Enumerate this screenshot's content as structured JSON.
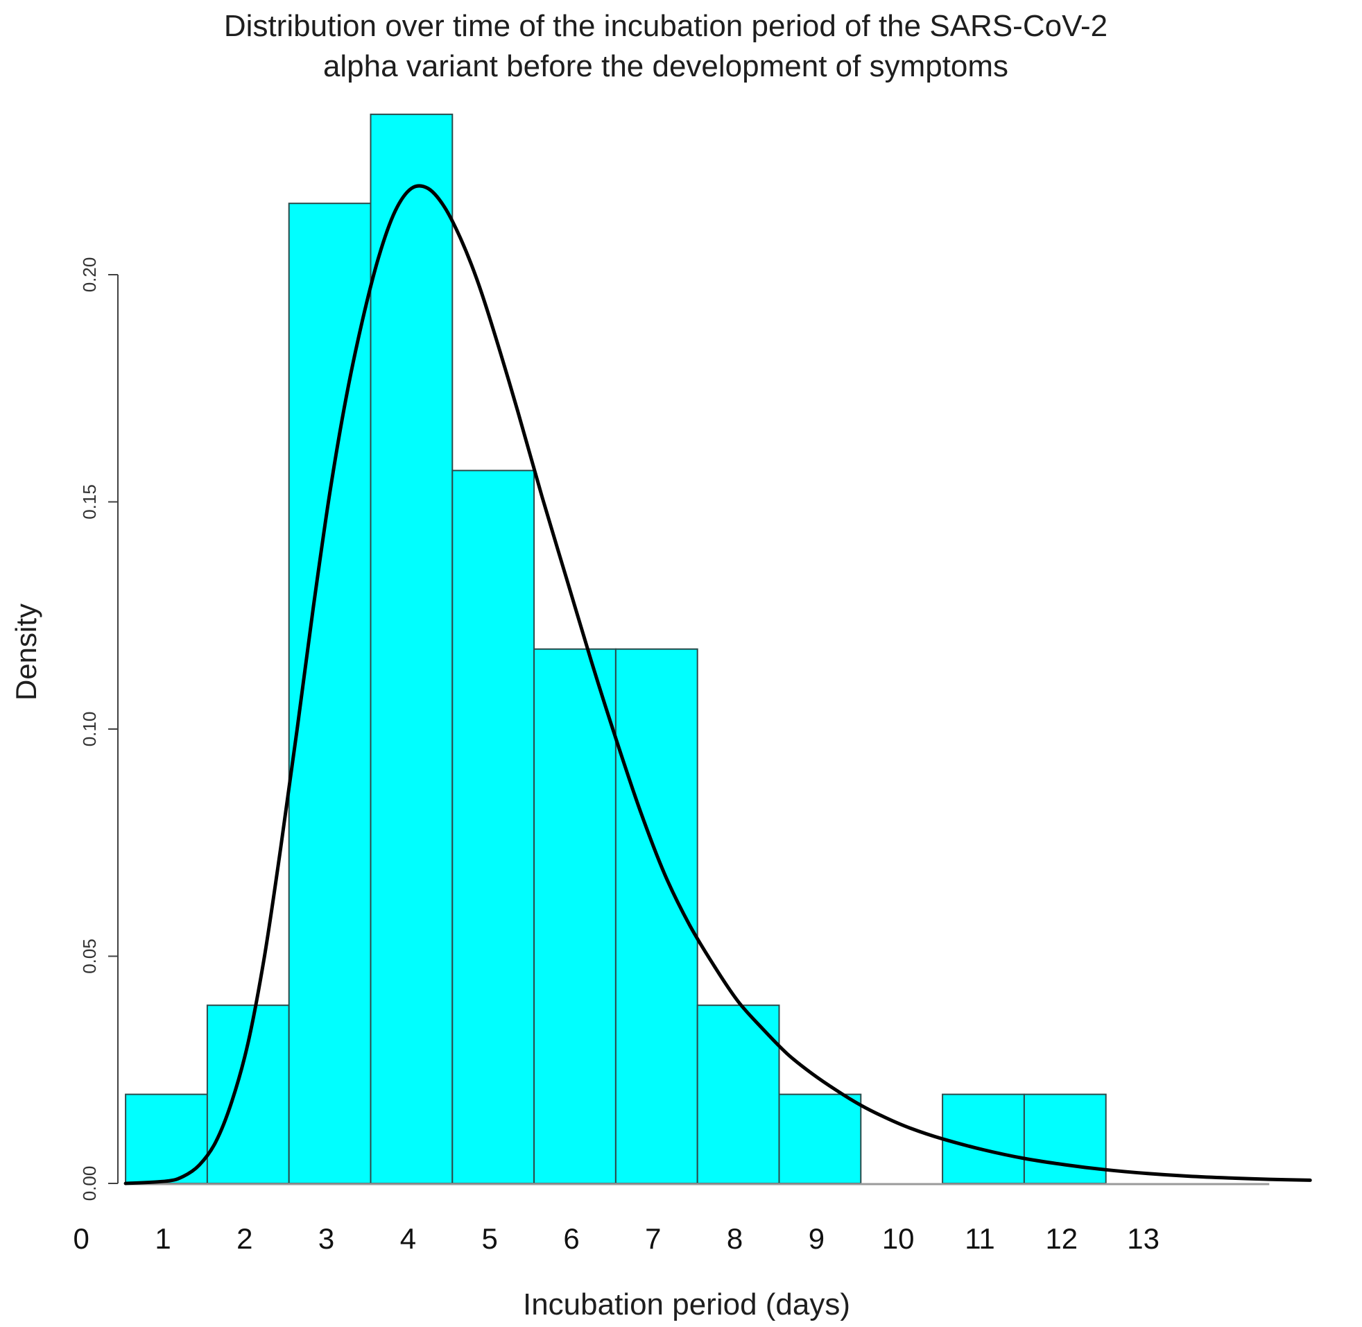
{
  "colors": {
    "bar_fill": "#00ffff",
    "bar_stroke": "#2b4a4a",
    "curve": "#000000",
    "axis": "#404040",
    "baseline": "#9a9a9a"
  },
  "chart_data": {
    "type": "bar",
    "subtype": "histogram-with-density-curve",
    "title_lines": [
      "Distribution over time of the incubation period of the SARS-CoV-2",
      "alpha variant before the development of symptoms"
    ],
    "xlabel": "Incubation period (days)",
    "ylabel": "Density",
    "ylim": [
      0,
      0.2
    ],
    "yticks": [
      "0.00",
      "0.05",
      "0.10",
      "0.15",
      "0.20"
    ],
    "xticks": [
      "0",
      "1",
      "2",
      "3",
      "4",
      "5",
      "6",
      "7",
      "8",
      "9",
      "10",
      "11",
      "12",
      "13"
    ],
    "bins": [
      {
        "from": 0.5,
        "to": 1.5,
        "density": 0.0196
      },
      {
        "from": 1.5,
        "to": 2.5,
        "density": 0.0392
      },
      {
        "from": 2.5,
        "to": 3.5,
        "density": 0.2157
      },
      {
        "from": 3.5,
        "to": 4.5,
        "density": 0.2353
      },
      {
        "from": 4.5,
        "to": 5.5,
        "density": 0.1569
      },
      {
        "from": 5.5,
        "to": 6.5,
        "density": 0.1176
      },
      {
        "from": 6.5,
        "to": 7.5,
        "density": 0.1176
      },
      {
        "from": 7.5,
        "to": 8.5,
        "density": 0.0392
      },
      {
        "from": 8.5,
        "to": 9.5,
        "density": 0.0196
      },
      {
        "from": 9.5,
        "to": 10.5,
        "density": 0
      },
      {
        "from": 10.5,
        "to": 11.5,
        "density": 0.0196
      },
      {
        "from": 11.5,
        "to": 12.5,
        "density": 0.0196
      }
    ],
    "density_curve": {
      "name": "fitted density",
      "x": [
        0.5,
        1.0,
        1.2,
        1.4,
        1.6,
        1.8,
        2.0,
        2.2,
        2.4,
        2.6,
        2.8,
        3.0,
        3.2,
        3.4,
        3.6,
        3.8,
        4.0,
        4.2,
        4.4,
        4.6,
        4.8,
        5.0,
        5.3,
        5.6,
        5.9,
        6.2,
        6.5,
        6.8,
        7.1,
        7.4,
        7.7,
        8.0,
        8.3,
        8.6,
        8.9,
        9.2,
        9.5,
        9.8,
        10.1,
        10.5,
        11.0,
        11.5,
        12.0,
        12.5,
        13.0,
        13.5,
        14.0,
        14.5,
        15.0
      ],
      "y": [
        0.0,
        0.0005,
        0.0015,
        0.004,
        0.009,
        0.018,
        0.031,
        0.05,
        0.074,
        0.1,
        0.127,
        0.152,
        0.173,
        0.19,
        0.204,
        0.214,
        0.219,
        0.219,
        0.215,
        0.208,
        0.199,
        0.188,
        0.17,
        0.151,
        0.133,
        0.115,
        0.098,
        0.082,
        0.068,
        0.057,
        0.048,
        0.04,
        0.034,
        0.0285,
        0.0242,
        0.0205,
        0.0172,
        0.0145,
        0.0122,
        0.0098,
        0.0074,
        0.0055,
        0.0041,
        0.003,
        0.0022,
        0.0016,
        0.0012,
        0.0009,
        0.0007
      ]
    }
  }
}
